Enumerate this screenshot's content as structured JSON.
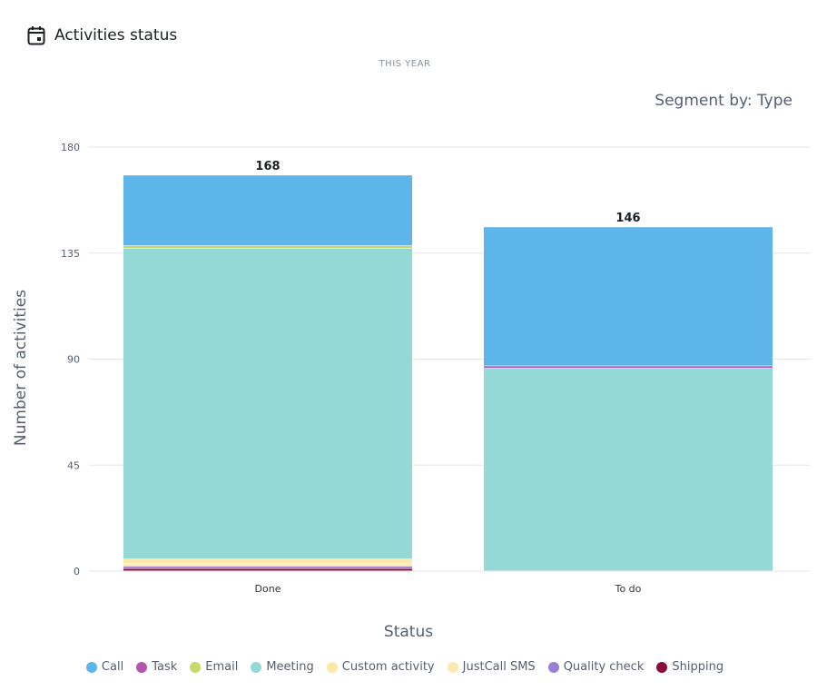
{
  "header": {
    "title": "Activities status",
    "icon": "calendar-icon"
  },
  "subtitle": "THIS YEAR",
  "segment_label": "Segment by: Type",
  "chart_data": {
    "type": "bar",
    "stacked": true,
    "categories": [
      "Done",
      "To do"
    ],
    "xlabel": "Status",
    "ylabel": "Number of activities",
    "ylim": [
      0,
      180
    ],
    "yticks": [
      0,
      45,
      90,
      135,
      180
    ],
    "totals": [
      168,
      146
    ],
    "series": [
      {
        "name": "Shipping",
        "color": "#8b0c3a",
        "values": [
          1,
          0
        ]
      },
      {
        "name": "Quality check",
        "color": "#9b7fd4",
        "values": [
          1,
          0
        ]
      },
      {
        "name": "JustCall SMS",
        "color": "#fde9b0",
        "values": [
          1,
          0
        ]
      },
      {
        "name": "Custom activity",
        "color": "#fde8a8",
        "values": [
          2,
          0
        ]
      },
      {
        "name": "Meeting",
        "color": "#95d9d7",
        "values": [
          132,
          86
        ]
      },
      {
        "name": "Email",
        "color": "#c8d86a",
        "values": [
          1,
          0
        ]
      },
      {
        "name": "Task",
        "color": "#b455b0",
        "values": [
          0,
          1
        ]
      },
      {
        "name": "Call",
        "color": "#5eb5ea",
        "values": [
          30,
          59
        ]
      }
    ],
    "legend_order": [
      "Call",
      "Task",
      "Email",
      "Meeting",
      "Custom activity",
      "JustCall SMS",
      "Quality check",
      "Shipping"
    ],
    "legend": "bottom",
    "grid": true
  }
}
